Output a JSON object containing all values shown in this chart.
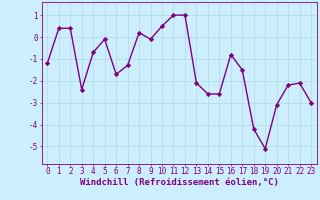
{
  "x": [
    0,
    1,
    2,
    3,
    4,
    5,
    6,
    7,
    8,
    9,
    10,
    11,
    12,
    13,
    14,
    15,
    16,
    17,
    18,
    19,
    20,
    21,
    22,
    23
  ],
  "y": [
    -1.2,
    0.4,
    0.4,
    -2.4,
    -0.7,
    -0.1,
    -1.7,
    -1.3,
    0.2,
    -0.1,
    0.5,
    1.0,
    1.0,
    -2.1,
    -2.6,
    -2.6,
    -0.8,
    -1.5,
    -4.2,
    -5.1,
    -3.1,
    -2.2,
    -2.1,
    -3.0
  ],
  "line_color": "#800080",
  "marker": "D",
  "markersize": 2.2,
  "linewidth": 1.0,
  "background_color": "#cceeff",
  "grid_color": "#aadddd",
  "xlabel": "Windchill (Refroidissement éolien,°C)",
  "xlabel_color": "#800080",
  "xlabel_fontsize": 6.5,
  "tick_color": "#800080",
  "tick_fontsize": 5.5,
  "ylim": [
    -5.8,
    1.6
  ],
  "yticks": [
    -5,
    -4,
    -3,
    -2,
    -1,
    0,
    1
  ],
  "xlim": [
    -0.5,
    23.5
  ],
  "xticks": [
    0,
    1,
    2,
    3,
    4,
    5,
    6,
    7,
    8,
    9,
    10,
    11,
    12,
    13,
    14,
    15,
    16,
    17,
    18,
    19,
    20,
    21,
    22,
    23
  ]
}
